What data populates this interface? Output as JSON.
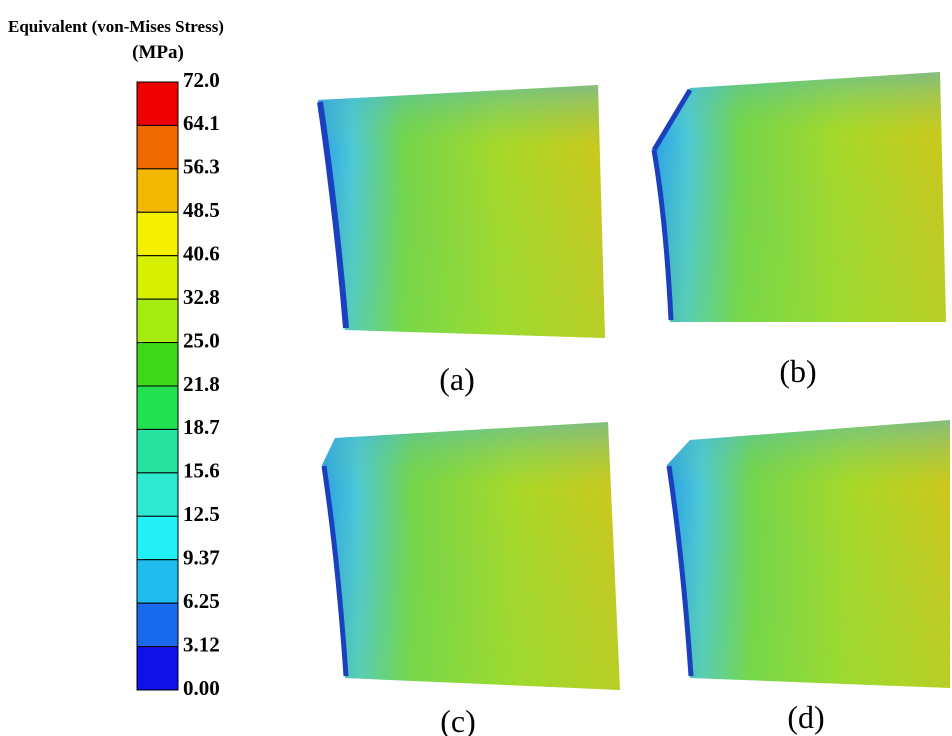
{
  "legend": {
    "title": "Equivalent (von-Mises Stress)",
    "unit": "(MPa)",
    "ticks": [
      "72.0",
      "64.1",
      "56.3",
      "48.5",
      "40.6",
      "32.8",
      "25.0",
      "21.8",
      "18.7",
      "15.6",
      "12.5",
      "9.37",
      "6.25",
      "3.12",
      "0.00"
    ],
    "colors": [
      "#ee0000",
      "#f06a00",
      "#f2b800",
      "#f4f000",
      "#d6f000",
      "#a4ec10",
      "#3ed81a",
      "#22e050",
      "#28e0a0",
      "#2ee8d0",
      "#22f0f4",
      "#20bcf0",
      "#1a6af0",
      "#1010e8"
    ]
  },
  "panels": [
    {
      "label": "(a)"
    },
    {
      "label": "(b)"
    },
    {
      "label": "(c)"
    },
    {
      "label": "(d)"
    }
  ]
}
